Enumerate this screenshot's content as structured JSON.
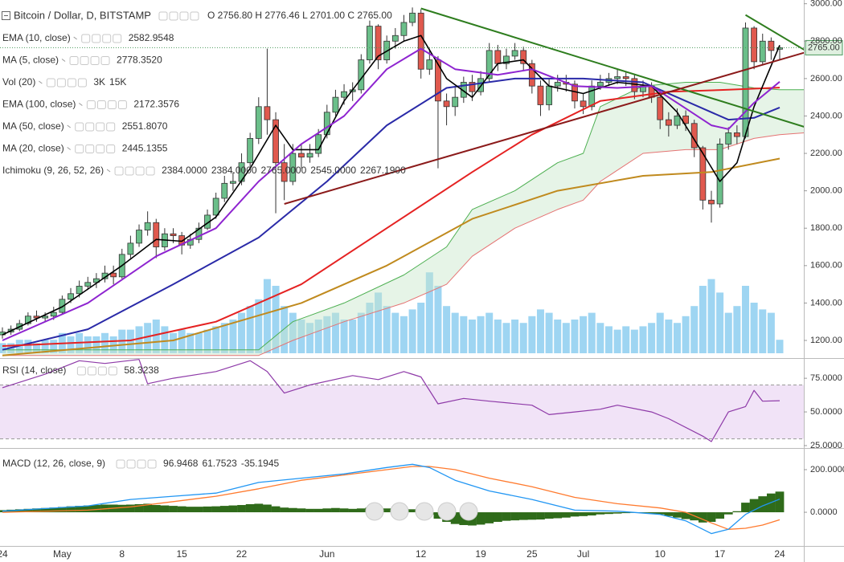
{
  "chart_data": [
    {
      "type": "candlestick",
      "title": "Bitcoin / Dollar, D, BITSTAMP",
      "ohlc_label": "O 2756.80 H 2776.46 L 2701.00 C 2765.00",
      "last_price_label": "2765.00",
      "categories": [
        "24",
        null,
        null,
        null,
        null,
        null,
        null,
        "May",
        null,
        null,
        null,
        null,
        null,
        null,
        "8",
        null,
        null,
        null,
        null,
        null,
        null,
        "15",
        null,
        null,
        null,
        null,
        null,
        null,
        "22",
        null,
        null,
        null,
        null,
        null,
        null,
        null,
        null,
        null,
        "Jun",
        null,
        null,
        null,
        null,
        null,
        null,
        null,
        null,
        null,
        null,
        "12",
        null,
        null,
        null,
        null,
        null,
        null,
        "19",
        null,
        null,
        null,
        null,
        null,
        "25",
        null,
        null,
        null,
        null,
        null,
        "Jul",
        null,
        null,
        null,
        null,
        null,
        null,
        null,
        null,
        "10",
        null,
        null,
        null,
        null,
        null,
        null,
        "17",
        null,
        null,
        null,
        null,
        null,
        null,
        "24"
      ],
      "open": [
        1230,
        1245,
        1260,
        1290,
        1330,
        1320,
        1330,
        1350,
        1420,
        1450,
        1490,
        1510,
        1530,
        1560,
        1540,
        1660,
        1720,
        1790,
        1830,
        1700,
        1770,
        1760,
        1710,
        1740,
        1800,
        1870,
        1960,
        2040,
        2050,
        2150,
        2280,
        2450,
        2380,
        2150,
        2050,
        2200,
        2180,
        2200,
        2300,
        2420,
        2500,
        2530,
        2540,
        2700,
        2880,
        2700,
        2800,
        2830,
        2900,
        2950,
        2650,
        2700,
        2480,
        2450,
        2500,
        2580,
        2530,
        2600,
        2750,
        2680,
        2720,
        2750,
        2680,
        2560,
        2460,
        2560,
        2580,
        2570,
        2480,
        2450,
        2560,
        2580,
        2600,
        2610,
        2600,
        2530,
        2560,
        2500,
        2380,
        2350,
        2400,
        2360,
        2230,
        1950,
        1930,
        2250,
        2310,
        2290,
        2870,
        2690,
        2800,
        2756.8
      ],
      "high": [
        1270,
        1280,
        1310,
        1350,
        1360,
        1350,
        1380,
        1440,
        1480,
        1520,
        1540,
        1560,
        1600,
        1600,
        1690,
        1760,
        1820,
        1890,
        1850,
        1800,
        1800,
        1780,
        1770,
        1830,
        1900,
        1990,
        2080,
        2100,
        2200,
        2310,
        2500,
        2760,
        2420,
        2250,
        2250,
        2250,
        2250,
        2330,
        2460,
        2540,
        2570,
        2580,
        2730,
        2910,
        2890,
        2830,
        2870,
        2940,
        2980,
        2970,
        2760,
        2720,
        2520,
        2560,
        2610,
        2620,
        2640,
        2790,
        2780,
        2760,
        2790,
        2770,
        2700,
        2590,
        2600,
        2620,
        2620,
        2590,
        2520,
        2590,
        2620,
        2630,
        2650,
        2640,
        2620,
        2590,
        2580,
        2520,
        2420,
        2440,
        2430,
        2380,
        2240,
        2000,
        2280,
        2340,
        2350,
        2900,
        2880,
        2840,
        2820,
        2776.46
      ],
      "low": [
        1210,
        1230,
        1250,
        1280,
        1300,
        1300,
        1310,
        1340,
        1400,
        1430,
        1470,
        1480,
        1510,
        1500,
        1530,
        1640,
        1700,
        1760,
        1640,
        1680,
        1720,
        1660,
        1690,
        1720,
        1790,
        1850,
        1940,
        2000,
        2030,
        2130,
        2250,
        2300,
        1880,
        1950,
        2030,
        2120,
        2150,
        2180,
        2280,
        2400,
        2460,
        2480,
        2520,
        2680,
        2650,
        2680,
        2760,
        2800,
        2880,
        2600,
        2620,
        2120,
        2350,
        2400,
        2470,
        2480,
        2510,
        2580,
        2640,
        2650,
        2700,
        2640,
        2520,
        2400,
        2430,
        2530,
        2530,
        2440,
        2410,
        2430,
        2540,
        2560,
        2570,
        2560,
        2490,
        2500,
        2470,
        2330,
        2290,
        2330,
        2320,
        2180,
        1900,
        1830,
        1910,
        2220,
        2250,
        2280,
        2650,
        2670,
        2700,
        2701
      ],
      "close": [
        1245,
        1260,
        1290,
        1330,
        1320,
        1330,
        1350,
        1420,
        1450,
        1490,
        1510,
        1530,
        1560,
        1540,
        1660,
        1720,
        1790,
        1830,
        1700,
        1770,
        1760,
        1710,
        1740,
        1800,
        1870,
        1960,
        2040,
        2050,
        2150,
        2280,
        2450,
        2380,
        2150,
        2050,
        2200,
        2180,
        2200,
        2300,
        2420,
        2500,
        2530,
        2540,
        2700,
        2880,
        2700,
        2800,
        2830,
        2900,
        2950,
        2650,
        2700,
        2480,
        2450,
        2500,
        2580,
        2530,
        2600,
        2750,
        2680,
        2720,
        2750,
        2680,
        2560,
        2460,
        2560,
        2580,
        2570,
        2480,
        2450,
        2560,
        2580,
        2600,
        2610,
        2600,
        2530,
        2560,
        2500,
        2380,
        2350,
        2400,
        2360,
        2230,
        1950,
        1930,
        2250,
        2310,
        2290,
        2870,
        2690,
        2800,
        2750,
        2765
      ],
      "volume": [
        3,
        3,
        4,
        4,
        3,
        4,
        4,
        6,
        5,
        6,
        5,
        5,
        6,
        5,
        7,
        7,
        8,
        9,
        10,
        8,
        6,
        7,
        6,
        6,
        7,
        8,
        9,
        10,
        12,
        14,
        16,
        22,
        20,
        14,
        12,
        10,
        9,
        10,
        11,
        12,
        10,
        10,
        12,
        15,
        18,
        14,
        12,
        11,
        13,
        15,
        24,
        20,
        14,
        12,
        11,
        10,
        11,
        12,
        10,
        9,
        10,
        9,
        11,
        13,
        12,
        10,
        9,
        10,
        11,
        12,
        9,
        8,
        7,
        8,
        7,
        8,
        9,
        12,
        10,
        9,
        11,
        14,
        20,
        22,
        18,
        12,
        14,
        20,
        15,
        13,
        12,
        4
      ],
      "up_color": "#6bbf8a",
      "down_color": "#e0594e",
      "volume_color": "#4fb3e8",
      "ylim": [
        1110,
        3020
      ],
      "yticks": [
        {
          "value": 1200,
          "label": "1200.00"
        },
        {
          "value": 1400,
          "label": "1400.00"
        },
        {
          "value": 1600,
          "label": "1600.00"
        },
        {
          "value": 1800,
          "label": "1800.00"
        },
        {
          "value": 2000,
          "label": "2000.00"
        },
        {
          "value": 2200,
          "label": "2200.00"
        },
        {
          "value": 2400,
          "label": "2400.00"
        },
        {
          "value": 2600,
          "label": "2600.00"
        },
        {
          "value": 2800,
          "label": "2800.00"
        },
        {
          "value": 3000,
          "label": "3000.00"
        }
      ],
      "indicators": [
        {
          "name": "EMA (10, close)",
          "value_labels": [
            "2582.9548"
          ],
          "color": "#8e24d0",
          "x": [
            0,
            10,
            18,
            25,
            30,
            35,
            40,
            45,
            49,
            53,
            58,
            62,
            67,
            72,
            76,
            80,
            83,
            85,
            88,
            91
          ],
          "values": [
            1200,
            1400,
            1650,
            1800,
            2050,
            2250,
            2400,
            2650,
            2760,
            2650,
            2620,
            2650,
            2560,
            2550,
            2560,
            2440,
            2350,
            2330,
            2470,
            2582.9548
          ]
        },
        {
          "name": "MA (5, close)",
          "value_labels": [
            "2778.3520"
          ],
          "color": "#000000",
          "x": [
            0,
            7,
            14,
            18,
            21,
            25,
            29,
            32,
            34,
            37,
            40,
            44,
            47,
            49,
            52,
            55,
            58,
            61,
            64,
            68,
            72,
            76,
            79,
            82,
            84,
            86,
            88,
            91
          ],
          "values": [
            1230,
            1380,
            1600,
            1740,
            1730,
            1860,
            2120,
            2350,
            2220,
            2220,
            2480,
            2720,
            2800,
            2830,
            2600,
            2500,
            2680,
            2700,
            2560,
            2520,
            2580,
            2560,
            2420,
            2200,
            2050,
            2150,
            2450,
            2778.352
          ]
        },
        {
          "name": "Vol (20)",
          "value_labels": [
            "3K",
            "15K"
          ],
          "label_colors": [
            "#2e7d32",
            "#1e5fc8"
          ]
        },
        {
          "name": "EMA (100, close)",
          "value_labels": [
            "2172.3576"
          ],
          "color": "#c08a1e",
          "x": [
            0,
            20,
            35,
            45,
            55,
            65,
            75,
            83,
            91
          ],
          "values": [
            1120,
            1200,
            1400,
            1600,
            1850,
            2000,
            2080,
            2100,
            2172.3576
          ]
        },
        {
          "name": "MA (50, close)",
          "value_labels": [
            "2551.8070"
          ],
          "color": "#e52222",
          "x": [
            0,
            15,
            25,
            35,
            45,
            55,
            62,
            70,
            78,
            85,
            91
          ],
          "values": [
            1170,
            1200,
            1300,
            1500,
            1800,
            2100,
            2300,
            2480,
            2530,
            2540,
            2551.807
          ]
        },
        {
          "name": "MA (20, close)",
          "value_labels": [
            "2445.1355"
          ],
          "color": "#2a2aa8",
          "x": [
            0,
            10,
            20,
            30,
            38,
            45,
            52,
            60,
            68,
            75,
            80,
            85,
            88,
            91
          ],
          "values": [
            1150,
            1260,
            1500,
            1750,
            2050,
            2350,
            2550,
            2600,
            2600,
            2580,
            2480,
            2380,
            2390,
            2445.1355
          ]
        },
        {
          "name": "Ichimoku (9, 26, 52, 26)",
          "value_labels": [
            "2384.0000",
            "2384.0000",
            "2765.0000",
            "2545.0000",
            "2267.1900"
          ],
          "label_colors": [
            "#2196f3",
            "#8b1a1a",
            "#3c8f3c",
            "#3c8f3c",
            "#d43a3a"
          ],
          "span_a_color": "#4caf50",
          "span_b_color": "#e57373",
          "cloud_color": "#c8e6c9",
          "x": [
            0,
            30,
            34,
            40,
            47,
            52,
            55,
            60,
            65,
            68,
            70,
            75,
            80,
            84,
            88,
            91,
            94
          ],
          "span_a": [
            1150,
            1150,
            1300,
            1400,
            1550,
            1700,
            1900,
            2000,
            2150,
            2200,
            2450,
            2560,
            2580,
            2580,
            2550,
            2540,
            2540
          ],
          "span_b": [
            1120,
            1120,
            1200,
            1300,
            1400,
            1500,
            1650,
            1800,
            1900,
            1950,
            2050,
            2200,
            2220,
            2220,
            2280,
            2300,
            2310
          ]
        }
      ],
      "trend_lines": [
        {
          "color": "#2e7d1e",
          "x": [
            49,
            94
          ],
          "values": [
            2975,
            2340
          ]
        },
        {
          "color": "#2e7d1e",
          "x": [
            87,
            94
          ],
          "values": [
            2940,
            2750
          ]
        },
        {
          "color": "#8b1a1a",
          "x": [
            33,
            94
          ],
          "values": [
            1930,
            2740
          ]
        }
      ]
    },
    {
      "type": "line",
      "title": "RSI (14, close)",
      "legend_value": "58.3238",
      "color": "#8e3aa8",
      "band_color": "#eddcf5",
      "x": [
        0,
        5,
        9,
        12,
        16,
        17,
        20,
        25,
        29,
        31,
        33,
        36,
        41,
        44,
        47,
        49,
        51,
        54,
        57,
        62,
        64,
        67,
        70,
        72,
        76,
        78,
        82,
        83,
        85,
        87,
        88,
        89,
        91
      ],
      "values": [
        68,
        78,
        88,
        86,
        89,
        71,
        75,
        80,
        88,
        80,
        64,
        70,
        77,
        74,
        80,
        76,
        56,
        60,
        58,
        55,
        48,
        50,
        52,
        55,
        50,
        45,
        32,
        28,
        50,
        54,
        66,
        58,
        58.3238
      ],
      "bands": [
        30,
        70
      ],
      "ylim": [
        24.4,
        89.4
      ],
      "yticks": [
        {
          "value": 25,
          "label": "25.0000"
        },
        {
          "value": 50,
          "label": "50.0000"
        },
        {
          "value": 75,
          "label": "75.0000"
        }
      ]
    },
    {
      "type": "macd",
      "title": "MACD (12, 26, close, 9)",
      "legend_values": [
        "96.9468",
        "61.7523",
        "-35.1945"
      ],
      "histogram_color": "#2f6b1a",
      "macd_color": "#2196f3",
      "signal_color": "#ff7a2e",
      "histogram": [
        10,
        12,
        14,
        16,
        18,
        20,
        22,
        25,
        28,
        30,
        32,
        34,
        36,
        36,
        35,
        36,
        38,
        40,
        34,
        32,
        30,
        28,
        26,
        26,
        27,
        28,
        30,
        32,
        34,
        38,
        40,
        36,
        28,
        22,
        20,
        18,
        16,
        16,
        18,
        20,
        18,
        16,
        18,
        22,
        20,
        18,
        16,
        15,
        14,
        4,
        -10,
        -30,
        -45,
        -55,
        -60,
        -62,
        -58,
        -52,
        -45,
        -40,
        -38,
        -36,
        -35,
        -34,
        -30,
        -28,
        -25,
        -20,
        -18,
        -15,
        -10,
        -8,
        -6,
        -4,
        -3,
        -4,
        -6,
        -10,
        -18,
        -25,
        -32,
        -38,
        -48,
        -45,
        -30,
        -10,
        5,
        45,
        62,
        75,
        88,
        96.9468
      ],
      "x": [
        0,
        10,
        15,
        20,
        25,
        30,
        35,
        40,
        45,
        48,
        50,
        53,
        57,
        62,
        67,
        72,
        77,
        80,
        83,
        85,
        87,
        89,
        91
      ],
      "macd": [
        5,
        30,
        60,
        75,
        90,
        140,
        160,
        180,
        210,
        225,
        210,
        150,
        100,
        60,
        10,
        5,
        -10,
        -40,
        -100,
        -80,
        -10,
        30,
        61.7523
      ],
      "signal": [
        0,
        10,
        25,
        50,
        75,
        110,
        150,
        175,
        200,
        215,
        215,
        200,
        160,
        120,
        70,
        40,
        20,
        0,
        -50,
        -80,
        -75,
        -60,
        -35.1945
      ],
      "ylim": [
        -158,
        294
      ],
      "yticks": [
        {
          "value": 0,
          "label": "0.0000"
        },
        {
          "value": 200,
          "label": "200.0000"
        }
      ]
    }
  ]
}
